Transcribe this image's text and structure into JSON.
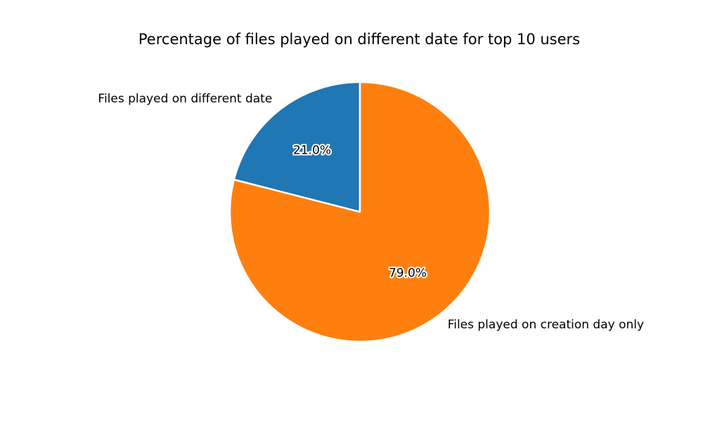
{
  "chart_data": {
    "type": "pie",
    "title": "Percentage of files played on different date for top 10 users",
    "labels": [
      "Files played on different date",
      "Files played on creation day only"
    ],
    "values": [
      21.0,
      79.0
    ],
    "value_labels": [
      "21.0%",
      "79.0%"
    ],
    "colors": [
      "#1f77b4",
      "#ff7f0e"
    ],
    "start_angle_deg": 90,
    "direction": "counterclockwise",
    "edge_color": "#ffffff",
    "legend": false
  }
}
